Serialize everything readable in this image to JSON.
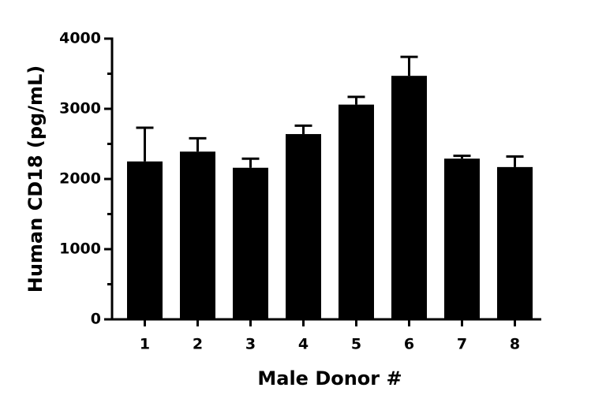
{
  "chart_data": {
    "type": "bar",
    "x_label": "Male Donor #",
    "y_label": "Human CD18 (pg/mL)",
    "categories": [
      "1",
      "2",
      "3",
      "4",
      "5",
      "6",
      "7",
      "8"
    ],
    "values": [
      2250,
      2390,
      2160,
      2640,
      3060,
      3470,
      2290,
      2170
    ],
    "errors": [
      480,
      190,
      130,
      120,
      110,
      270,
      40,
      150
    ],
    "color": "#000000",
    "ylim": [
      0,
      4000
    ],
    "yticks": [
      0,
      1000,
      2000,
      3000,
      4000
    ],
    "yminorticks": [
      500,
      1500,
      2500,
      3500
    ],
    "grid": false
  }
}
